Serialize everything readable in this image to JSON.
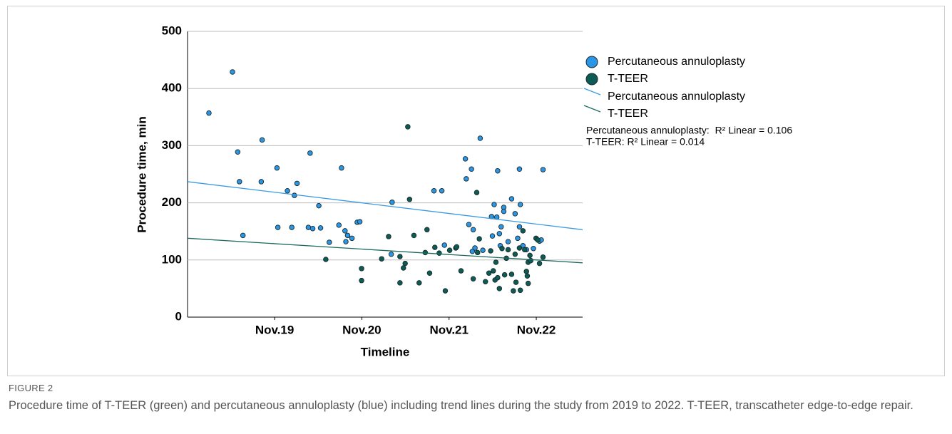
{
  "figure": {
    "label": "FIGURE 2",
    "caption": "Procedure time of T-TEER (green) and percutaneous annuloplasty (blue) including trend lines during the study from 2019 to 2022. T-TEER, transcatheter edge-to-edge repair."
  },
  "chart_data": {
    "type": "scatter",
    "xlabel": "Timeline",
    "ylabel": "Procedure time, min",
    "xlim": [
      2018.835,
      2023.364
    ],
    "ylim": [
      0,
      500
    ],
    "xticks": [
      {
        "value": 2019.833,
        "label": "Nov.19"
      },
      {
        "value": 2020.833,
        "label": "Nov.20"
      },
      {
        "value": 2021.833,
        "label": "Nov.21"
      },
      {
        "value": 2022.833,
        "label": "Nov.22"
      }
    ],
    "yticks": [
      0,
      100,
      200,
      300,
      400,
      500
    ],
    "grid": true,
    "legend": "right",
    "series": [
      {
        "name": "Percutaneous annuloplasty",
        "color": "#2b95e6",
        "x": [
          2019.08,
          2019.35,
          2019.41,
          2019.43,
          2019.47,
          2019.68,
          2019.69,
          2019.86,
          2019.87,
          2019.98,
          2020.03,
          2020.06,
          2020.09,
          2020.22,
          2020.24,
          2020.27,
          2020.34,
          2020.36,
          2020.46,
          2020.57,
          2020.6,
          2020.64,
          2020.65,
          2020.67,
          2020.72,
          2020.78,
          2020.81,
          2021.17,
          2021.18,
          2021.66,
          2021.75,
          2021.78,
          2022.02,
          2022.03,
          2022.06,
          2022.09,
          2022.1,
          2022.11,
          2022.13,
          2022.19,
          2022.22,
          2022.32,
          2022.33,
          2022.35,
          2022.38,
          2022.39,
          2022.41,
          2022.42,
          2022.43,
          2022.46,
          2022.46,
          2022.51,
          2022.55,
          2022.59,
          2022.62,
          2022.64,
          2022.64,
          2022.65,
          2022.68,
          2022.72,
          2022.8,
          2022.87,
          2022.89,
          2022.91
        ],
        "values": [
          357,
          429,
          289,
          237,
          143,
          237,
          310,
          261,
          157,
          221,
          157,
          213,
          234,
          157,
          287,
          155,
          195,
          156,
          131,
          161,
          261,
          151,
          132,
          143,
          138,
          166,
          167,
          110,
          201,
          221,
          221,
          126,
          277,
          242,
          162,
          259,
          115,
          153,
          121,
          313,
          117,
          176,
          142,
          197,
          175,
          256,
          146,
          125,
          158,
          192,
          185,
          132,
          207,
          181,
          138,
          158,
          259,
          197,
          125,
          118,
          120,
          133,
          135,
          258
        ]
      },
      {
        "name": "T-TEER",
        "color": "#0d5b55",
        "x": [
          2020.42,
          2020.83,
          2020.83,
          2021.06,
          2021.14,
          2021.27,
          2021.27,
          2021.31,
          2021.33,
          2021.36,
          2021.38,
          2021.43,
          2021.49,
          2021.56,
          2021.58,
          2021.61,
          2021.67,
          2021.72,
          2021.79,
          2021.84,
          2021.91,
          2021.92,
          2021.97,
          2022.11,
          2022.15,
          2022.16,
          2022.18,
          2022.25,
          2022.29,
          2022.31,
          2022.34,
          2022.36,
          2022.37,
          2022.39,
          2022.41,
          2022.44,
          2022.47,
          2022.49,
          2022.51,
          2022.55,
          2022.57,
          2022.59,
          2022.6,
          2022.64,
          2022.65,
          2022.68,
          2022.7,
          2022.72,
          2022.73,
          2022.74,
          2022.74,
          2022.76,
          2022.77,
          2022.83,
          2022.85,
          2022.87,
          2022.91
        ],
        "values": [
          101,
          85,
          64,
          102,
          141,
          106,
          60,
          86,
          94,
          333,
          206,
          143,
          60,
          113,
          153,
          77,
          122,
          112,
          46,
          117,
          121,
          123,
          81,
          67,
          218,
          113,
          137,
          62,
          77,
          116,
          81,
          65,
          96,
          69,
          50,
          120,
          74,
          103,
          118,
          75,
          46,
          110,
          61,
          121,
          47,
          151,
          118,
          80,
          72,
          96,
          59,
          108,
          99,
          138,
          135,
          94,
          105
        ]
      }
    ],
    "trendlines": [
      {
        "name": "Percutaneous annuloplasty",
        "color": "#3a9ae2",
        "x": [
          2018.835,
          2023.364
        ],
        "values": [
          237,
          153
        ]
      },
      {
        "name": "T-TEER",
        "color": "#1d6b60",
        "x": [
          2018.835,
          2023.364
        ],
        "values": [
          138,
          95
        ]
      }
    ],
    "annotations": [
      "Percutaneous annuloplasty:  R² Linear = 0.106",
      "T-TEER: R² Linear = 0.014"
    ]
  }
}
